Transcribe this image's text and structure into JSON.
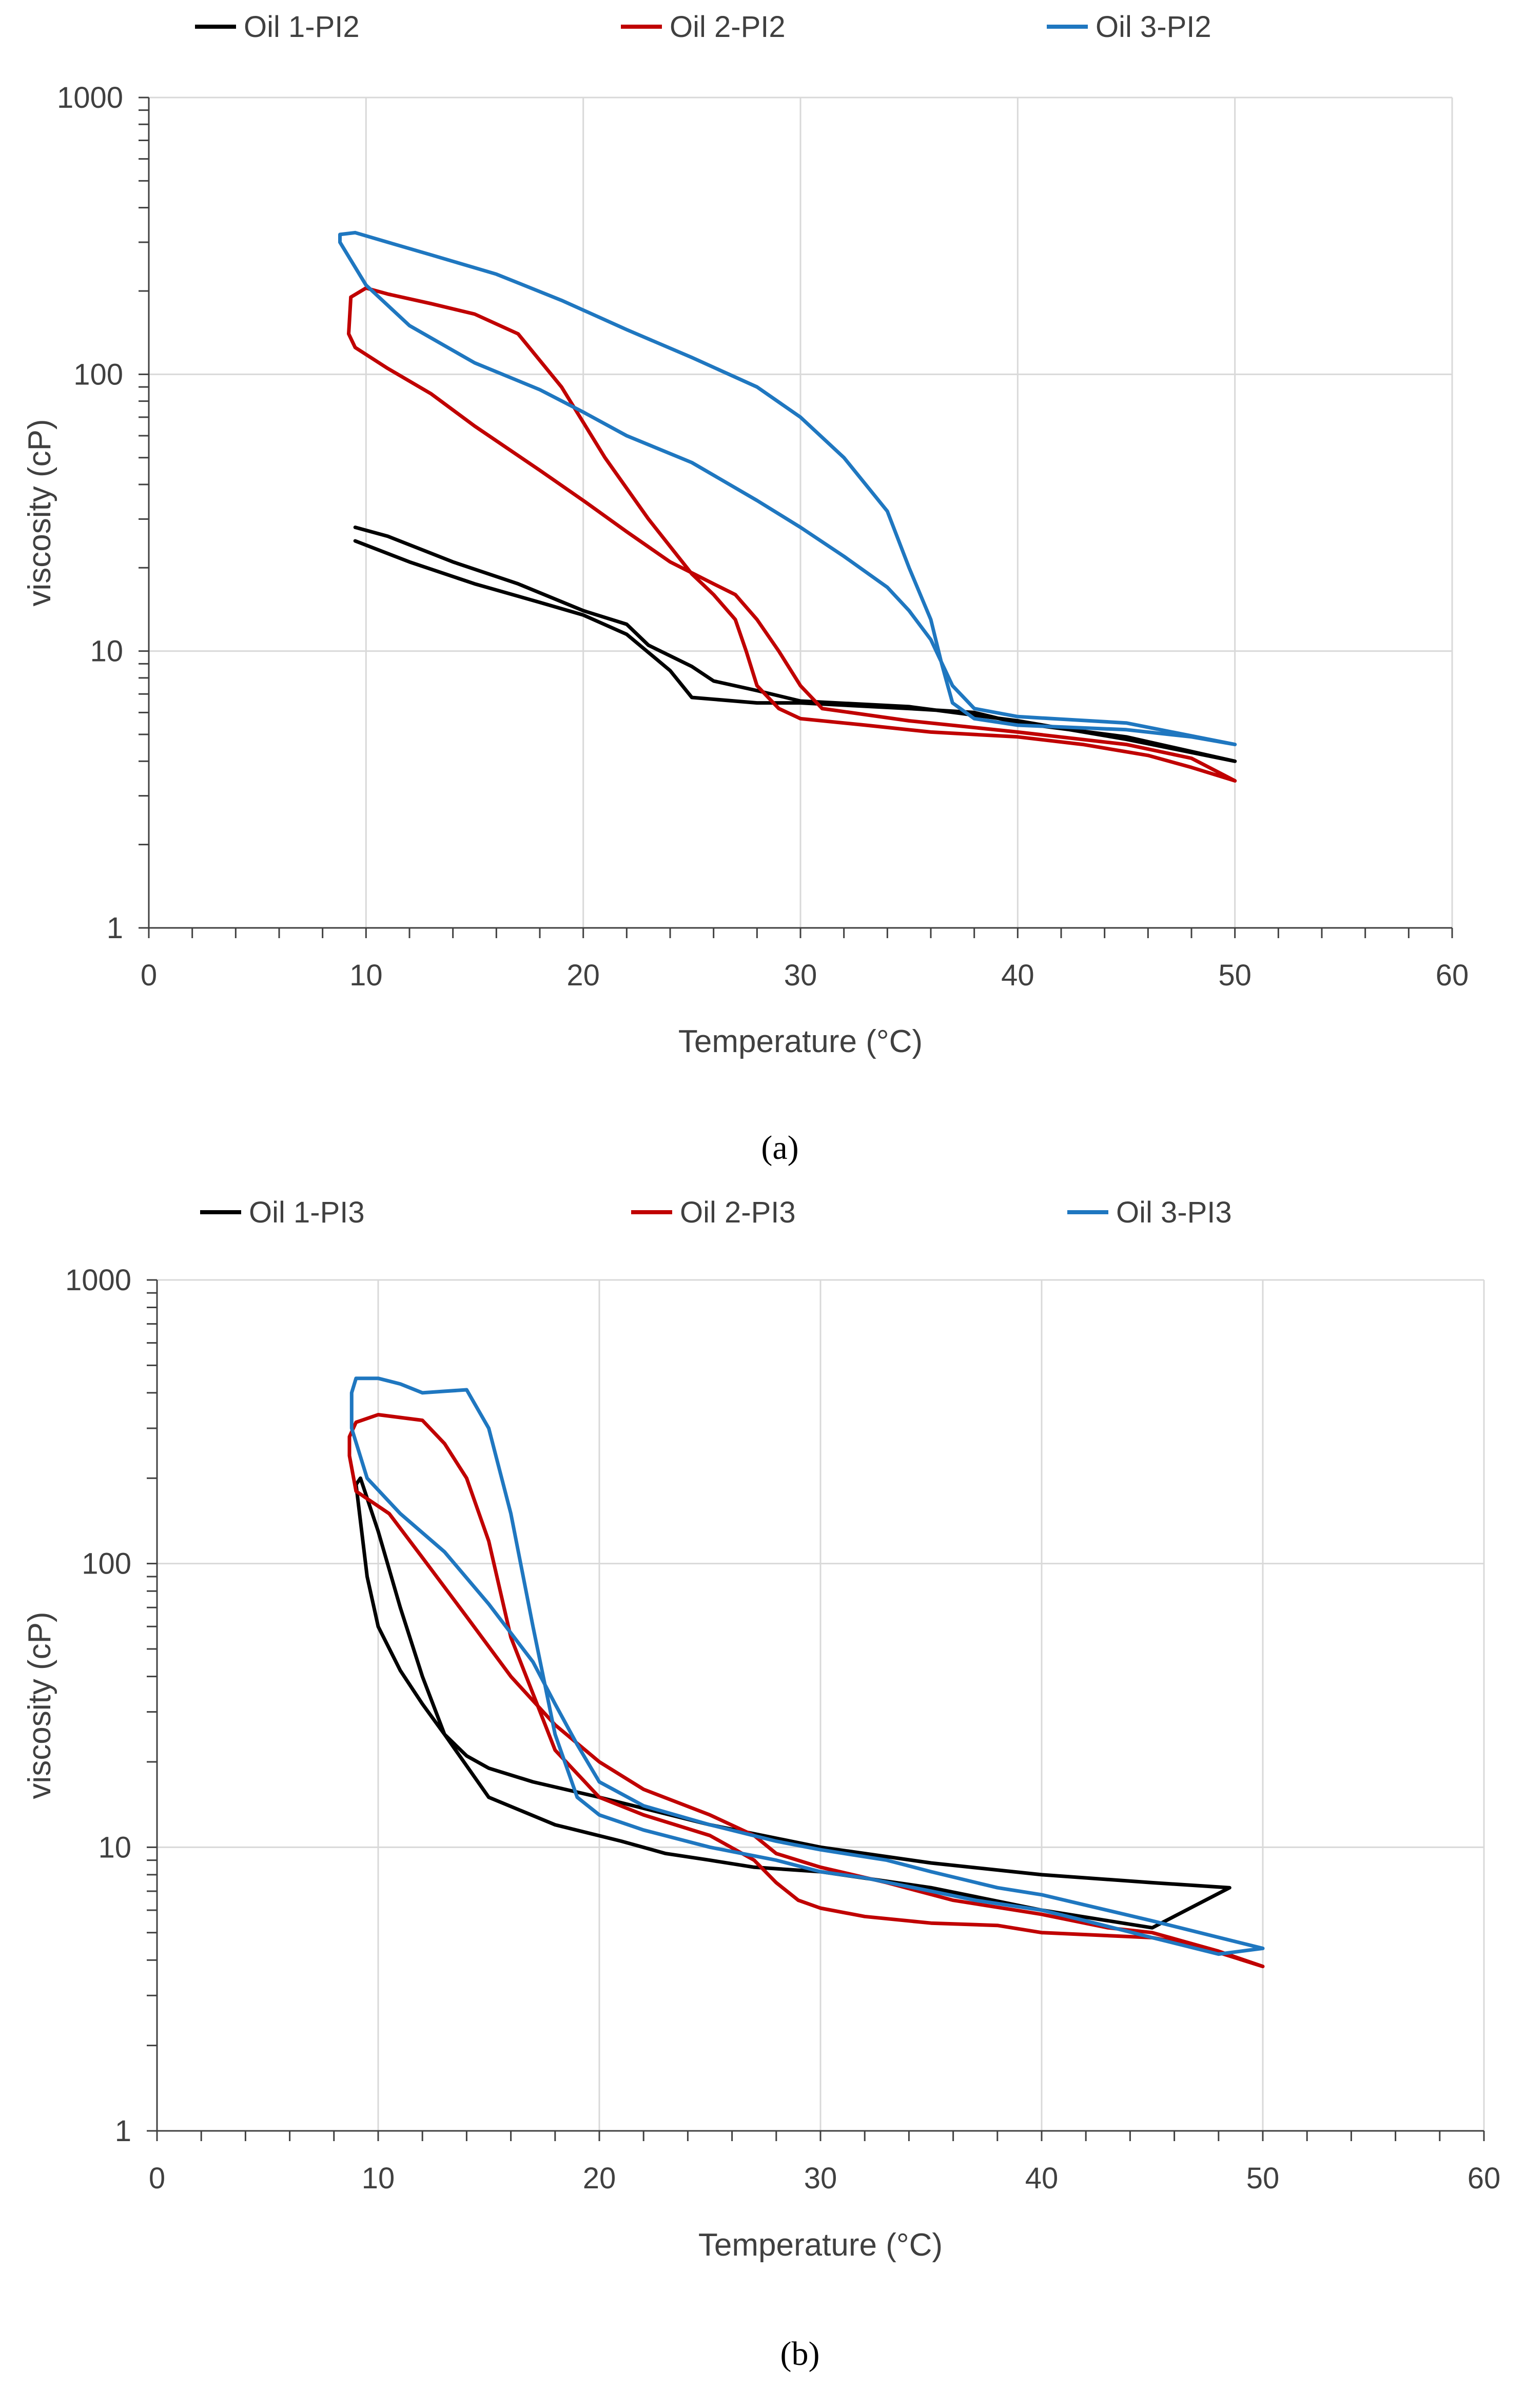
{
  "chart_data": [
    {
      "panel": "a",
      "caption": "(a)",
      "type": "line",
      "xlabel": "Temperature (°C)",
      "ylabel": "viscosity (cP)",
      "xlim": [
        0,
        60
      ],
      "ylim": [
        1,
        1000
      ],
      "yscale": "log",
      "xticks": [
        0,
        10,
        20,
        30,
        40,
        50,
        60
      ],
      "yticks": [
        1,
        10,
        100,
        1000
      ],
      "grid": true,
      "legend_position": "top",
      "series": [
        {
          "name": "Oil 1-PI2",
          "color": "#000000",
          "points": [
            [
              9.5,
              25
            ],
            [
              12,
              21
            ],
            [
              15,
              17.5
            ],
            [
              18,
              15
            ],
            [
              20,
              13.5
            ],
            [
              22,
              11.5
            ],
            [
              24,
              8.5
            ],
            [
              25,
              6.8
            ],
            [
              28,
              6.5
            ],
            [
              30,
              6.5
            ],
            [
              35,
              6.2
            ],
            [
              38,
              6.0
            ],
            [
              40,
              5.5
            ],
            [
              45,
              4.9
            ],
            [
              50,
              4.0
            ],
            [
              45,
              4.8
            ],
            [
              40,
              5.6
            ],
            [
              35,
              6.3
            ],
            [
              30,
              6.6
            ],
            [
              28,
              7.2
            ],
            [
              26,
              7.8
            ],
            [
              25,
              8.8
            ],
            [
              23,
              10.5
            ],
            [
              22,
              12.5
            ],
            [
              20,
              14
            ],
            [
              17,
              17.5
            ],
            [
              14,
              21
            ],
            [
              11,
              26
            ],
            [
              9.5,
              28
            ]
          ]
        },
        {
          "name": "Oil 2-PI2",
          "color": "#C00000",
          "points": [
            [
              9.5,
              125
            ],
            [
              11,
              105
            ],
            [
              13,
              85
            ],
            [
              15,
              65
            ],
            [
              18,
              45
            ],
            [
              20,
              35
            ],
            [
              22,
              27
            ],
            [
              24,
              21
            ],
            [
              26,
              17.5
            ],
            [
              27,
              16
            ],
            [
              28,
              13
            ],
            [
              29,
              10
            ],
            [
              30,
              7.5
            ],
            [
              31,
              6.2
            ],
            [
              35,
              5.6
            ],
            [
              40,
              5.1
            ],
            [
              45,
              4.6
            ],
            [
              48,
              4.1
            ],
            [
              50,
              3.4
            ],
            [
              48,
              3.8
            ],
            [
              46,
              4.2
            ],
            [
              43,
              4.6
            ],
            [
              40,
              4.9
            ],
            [
              36,
              5.1
            ],
            [
              33,
              5.4
            ],
            [
              30,
              5.7
            ],
            [
              29,
              6.2
            ],
            [
              28,
              7.5
            ],
            [
              27.5,
              10
            ],
            [
              27,
              13
            ],
            [
              26,
              16
            ],
            [
              25,
              19
            ],
            [
              23,
              30
            ],
            [
              21,
              50
            ],
            [
              19,
              90
            ],
            [
              17,
              140
            ],
            [
              15,
              165
            ],
            [
              13,
              180
            ],
            [
              11,
              195
            ],
            [
              10,
              205
            ],
            [
              9.3,
              190
            ],
            [
              9.2,
              140
            ],
            [
              9.5,
              125
            ]
          ]
        },
        {
          "name": "Oil 3-PI2",
          "color": "#1F77C0",
          "points": [
            [
              8.8,
              300
            ],
            [
              10,
              210
            ],
            [
              12,
              150
            ],
            [
              15,
              110
            ],
            [
              18,
              88
            ],
            [
              20,
              73
            ],
            [
              22,
              60
            ],
            [
              25,
              48
            ],
            [
              28,
              35
            ],
            [
              30,
              28
            ],
            [
              32,
              22
            ],
            [
              34,
              17
            ],
            [
              35,
              14
            ],
            [
              36,
              11
            ],
            [
              37,
              7.5
            ],
            [
              38,
              6.2
            ],
            [
              40,
              5.8
            ],
            [
              45,
              5.5
            ],
            [
              50,
              4.6
            ],
            [
              48,
              4.9
            ],
            [
              45,
              5.2
            ],
            [
              40,
              5.4
            ],
            [
              38,
              5.7
            ],
            [
              37,
              6.5
            ],
            [
              36.5,
              9
            ],
            [
              36,
              13
            ],
            [
              35,
              20
            ],
            [
              34,
              32
            ],
            [
              32,
              50
            ],
            [
              30,
              70
            ],
            [
              28,
              90
            ],
            [
              25,
              115
            ],
            [
              22,
              145
            ],
            [
              19,
              185
            ],
            [
              16,
              230
            ],
            [
              13,
              270
            ],
            [
              11,
              300
            ],
            [
              9.5,
              325
            ],
            [
              8.8,
              320
            ],
            [
              8.8,
              300
            ]
          ]
        }
      ]
    },
    {
      "panel": "b",
      "caption": "(b)",
      "type": "line",
      "xlabel": "Temperature (°C)",
      "ylabel": "viscosity (cP)",
      "xlim": [
        0,
        60
      ],
      "ylim": [
        1,
        1000
      ],
      "yscale": "log",
      "xticks": [
        0,
        10,
        20,
        30,
        40,
        50,
        60
      ],
      "yticks": [
        1,
        10,
        100,
        1000
      ],
      "grid": true,
      "legend_position": "top",
      "series": [
        {
          "name": "Oil 1-PI3",
          "color": "#000000",
          "points": [
            [
              9,
              190
            ],
            [
              9.5,
              90
            ],
            [
              10,
              60
            ],
            [
              11,
              42
            ],
            [
              12,
              32
            ],
            [
              13,
              25
            ],
            [
              14,
              21
            ],
            [
              15,
              19
            ],
            [
              17,
              17
            ],
            [
              20,
              15
            ],
            [
              25,
              12
            ],
            [
              30,
              10
            ],
            [
              35,
              8.8
            ],
            [
              40,
              8
            ],
            [
              45,
              7.5
            ],
            [
              48.5,
              7.2
            ],
            [
              45,
              5.2
            ],
            [
              40,
              6.0
            ],
            [
              35,
              7.2
            ],
            [
              30,
              8.2
            ],
            [
              27,
              8.5
            ],
            [
              25,
              9
            ],
            [
              23,
              9.5
            ],
            [
              21,
              10.5
            ],
            [
              18,
              12
            ],
            [
              15,
              15
            ],
            [
              13,
              25
            ],
            [
              12,
              40
            ],
            [
              11,
              70
            ],
            [
              10,
              130
            ],
            [
              9.2,
              200
            ],
            [
              9,
              190
            ]
          ]
        },
        {
          "name": "Oil 2-PI3",
          "color": "#C00000",
          "points": [
            [
              8.7,
              240
            ],
            [
              9,
              180
            ],
            [
              10.5,
              150
            ],
            [
              12,
              105
            ],
            [
              14,
              65
            ],
            [
              16,
              40
            ],
            [
              18,
              27
            ],
            [
              20,
              20
            ],
            [
              22,
              16
            ],
            [
              25,
              13
            ],
            [
              27,
              11
            ],
            [
              28,
              9.5
            ],
            [
              30,
              8.5
            ],
            [
              33,
              7.5
            ],
            [
              36,
              6.5
            ],
            [
              40,
              5.8
            ],
            [
              43,
              5.2
            ],
            [
              45,
              5.0
            ],
            [
              48,
              4.3
            ],
            [
              50,
              3.8
            ],
            [
              47,
              4.5
            ],
            [
              45,
              4.8
            ],
            [
              40,
              5.0
            ],
            [
              38,
              5.3
            ],
            [
              35,
              5.4
            ],
            [
              32,
              5.7
            ],
            [
              30,
              6.1
            ],
            [
              29,
              6.5
            ],
            [
              28,
              7.5
            ],
            [
              27,
              9
            ],
            [
              25,
              11
            ],
            [
              22,
              13
            ],
            [
              20,
              15
            ],
            [
              18,
              22
            ],
            [
              16,
              55
            ],
            [
              15,
              120
            ],
            [
              14,
              200
            ],
            [
              13,
              265
            ],
            [
              12,
              320
            ],
            [
              10,
              335
            ],
            [
              9,
              315
            ],
            [
              8.7,
              280
            ],
            [
              8.7,
              240
            ]
          ]
        },
        {
          "name": "Oil 3-PI3",
          "color": "#1F77C0",
          "points": [
            [
              8.8,
              300
            ],
            [
              9.5,
              200
            ],
            [
              11,
              150
            ],
            [
              13,
              110
            ],
            [
              15,
              72
            ],
            [
              17,
              45
            ],
            [
              18,
              32
            ],
            [
              19,
              23
            ],
            [
              20,
              17
            ],
            [
              22,
              14
            ],
            [
              25,
              12
            ],
            [
              28,
              10.5
            ],
            [
              30,
              9.8
            ],
            [
              33,
              9
            ],
            [
              35,
              8.2
            ],
            [
              38,
              7.2
            ],
            [
              40,
              6.8
            ],
            [
              45,
              5.5
            ],
            [
              50,
              4.4
            ],
            [
              48,
              4.2
            ],
            [
              45,
              4.8
            ],
            [
              42,
              5.5
            ],
            [
              40,
              6.0
            ],
            [
              37,
              6.5
            ],
            [
              35,
              7.0
            ],
            [
              32,
              7.8
            ],
            [
              30,
              8.2
            ],
            [
              28,
              9
            ],
            [
              25,
              10
            ],
            [
              22,
              11.5
            ],
            [
              20,
              13
            ],
            [
              19,
              15
            ],
            [
              18,
              25
            ],
            [
              17,
              60
            ],
            [
              16,
              150
            ],
            [
              15,
              300
            ],
            [
              14,
              410
            ],
            [
              13,
              405
            ],
            [
              12,
              400
            ],
            [
              11,
              430
            ],
            [
              10,
              450
            ],
            [
              9,
              450
            ],
            [
              8.8,
              400
            ],
            [
              8.8,
              300
            ]
          ]
        }
      ]
    }
  ]
}
